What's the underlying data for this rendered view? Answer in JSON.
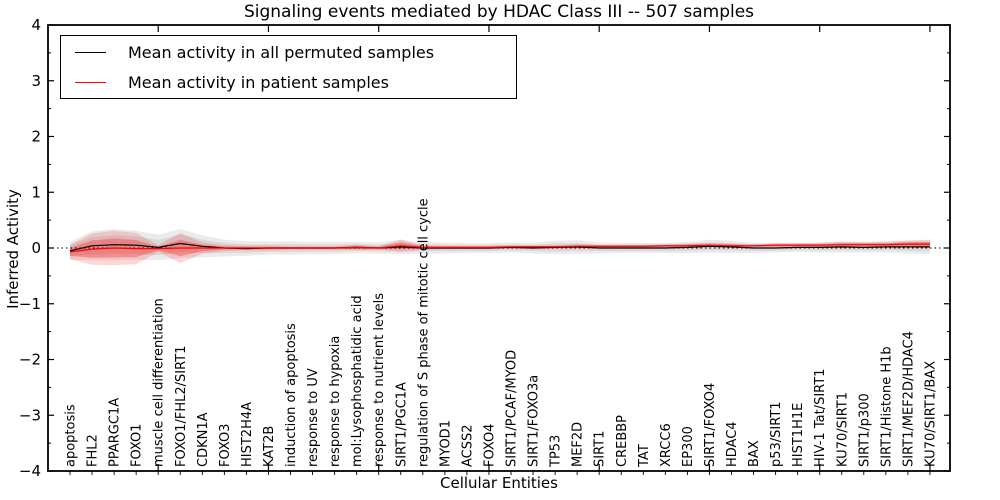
{
  "title": "Signaling events mediated by HDAC Class III -- 507 samples",
  "axes": {
    "xlabel": "Cellular Entities",
    "ylabel": "Inferred Activity"
  },
  "legend": {
    "items": [
      {
        "label": "Mean activity in all permuted samples",
        "color": "#000000"
      },
      {
        "label": "Mean activity in patient samples",
        "color": "#ff0000"
      }
    ]
  },
  "colors": {
    "permuted_line": "#000000",
    "patient_line": "#ff0000",
    "permuted_band": "#999999",
    "patient_band": "#ff0000",
    "frame": "#000000",
    "background": "#ffffff"
  },
  "chart_data": {
    "type": "line",
    "title": "Signaling events mediated by HDAC Class III -- 507 samples",
    "xlabel": "Cellular Entities",
    "ylabel": "Inferred Activity",
    "ylim": [
      -4,
      4
    ],
    "yticks": [
      -4,
      -3,
      -2,
      -1,
      0,
      1,
      2,
      3,
      4
    ],
    "grid": false,
    "zero_line": true,
    "legend_position": "upper left",
    "categories": [
      "apoptosis",
      "FHL2",
      "PPARGC1A",
      "FOXO1",
      "muscle cell differentiation",
      "FOXO1/FHL2/SIRT1",
      "CDKN1A",
      "FOXO3",
      "HIST2H4A",
      "KAT2B",
      "induction of apoptosis",
      "response to UV",
      "response to hypoxia",
      "mol:Lysophosphatidic acid",
      "response to nutrient levels",
      "SIRT1/PGC1A",
      "regulation of S phase of mitotic cell cycle",
      "MYOD1",
      "ACSS2",
      "FOXO4",
      "SIRT1/PCAF/MYOD",
      "SIRT1/FOXO3a",
      "TP53",
      "MEF2D",
      "SIRT1",
      "CREBBP",
      "TAT",
      "XRCC6",
      "EP300",
      "SIRT1/FOXO4",
      "HDAC4",
      "BAX",
      "p53/SIRT1",
      "HIST1H1E",
      "HIV-1 Tat/SIRT1",
      "KU70/SIRT1",
      "SIRT1/p300",
      "SIRT1/Histone H1b",
      "SIRT1/MEF2D/HDAC4",
      "KU70/SIRT1/BAX"
    ],
    "series": [
      {
        "name": "Mean activity in all permuted samples",
        "color": "#000000",
        "values": [
          -0.05,
          0.04,
          0.06,
          0.05,
          0.01,
          0.08,
          0.03,
          0.0,
          -0.01,
          0.0,
          0.0,
          0.0,
          0.0,
          0.01,
          0.0,
          0.02,
          0.0,
          0.0,
          0.0,
          0.0,
          0.01,
          0.0,
          0.01,
          0.02,
          0.0,
          0.0,
          0.0,
          0.0,
          0.01,
          0.03,
          0.02,
          0.0,
          0.0,
          0.01,
          0.01,
          0.02,
          0.01,
          0.02,
          0.02,
          0.02
        ],
        "band_halfwidth": [
          0.16,
          0.26,
          0.28,
          0.26,
          0.23,
          0.26,
          0.2,
          0.15,
          0.13,
          0.12,
          0.12,
          0.11,
          0.11,
          0.1,
          0.1,
          0.13,
          0.1,
          0.1,
          0.09,
          0.09,
          0.09,
          0.1,
          0.12,
          0.12,
          0.1,
          0.09,
          0.09,
          0.09,
          0.1,
          0.12,
          0.11,
          0.09,
          0.08,
          0.08,
          0.09,
          0.1,
          0.09,
          0.1,
          0.12,
          0.13
        ],
        "band_color": "#999999"
      },
      {
        "name": "Mean activity in patient samples",
        "color": "#ff0000",
        "values": [
          -0.07,
          -0.02,
          0.0,
          -0.01,
          -0.01,
          0.0,
          0.0,
          0.0,
          0.0,
          0.0,
          0.0,
          0.0,
          0.0,
          0.01,
          0.0,
          0.04,
          0.01,
          0.01,
          0.01,
          0.01,
          0.02,
          0.02,
          0.02,
          0.03,
          0.03,
          0.03,
          0.03,
          0.04,
          0.04,
          0.05,
          0.04,
          0.04,
          0.05,
          0.05,
          0.05,
          0.06,
          0.06,
          0.06,
          0.07,
          0.07
        ],
        "band_halfwidth": [
          0.13,
          0.28,
          0.31,
          0.28,
          0.06,
          0.27,
          0.1,
          0.05,
          0.04,
          0.04,
          0.03,
          0.03,
          0.03,
          0.05,
          0.03,
          0.11,
          0.04,
          0.03,
          0.03,
          0.03,
          0.03,
          0.03,
          0.03,
          0.04,
          0.03,
          0.03,
          0.03,
          0.03,
          0.04,
          0.04,
          0.04,
          0.03,
          0.04,
          0.04,
          0.04,
          0.05,
          0.05,
          0.05,
          0.06,
          0.07
        ],
        "band_color": "#ff0000"
      }
    ]
  }
}
